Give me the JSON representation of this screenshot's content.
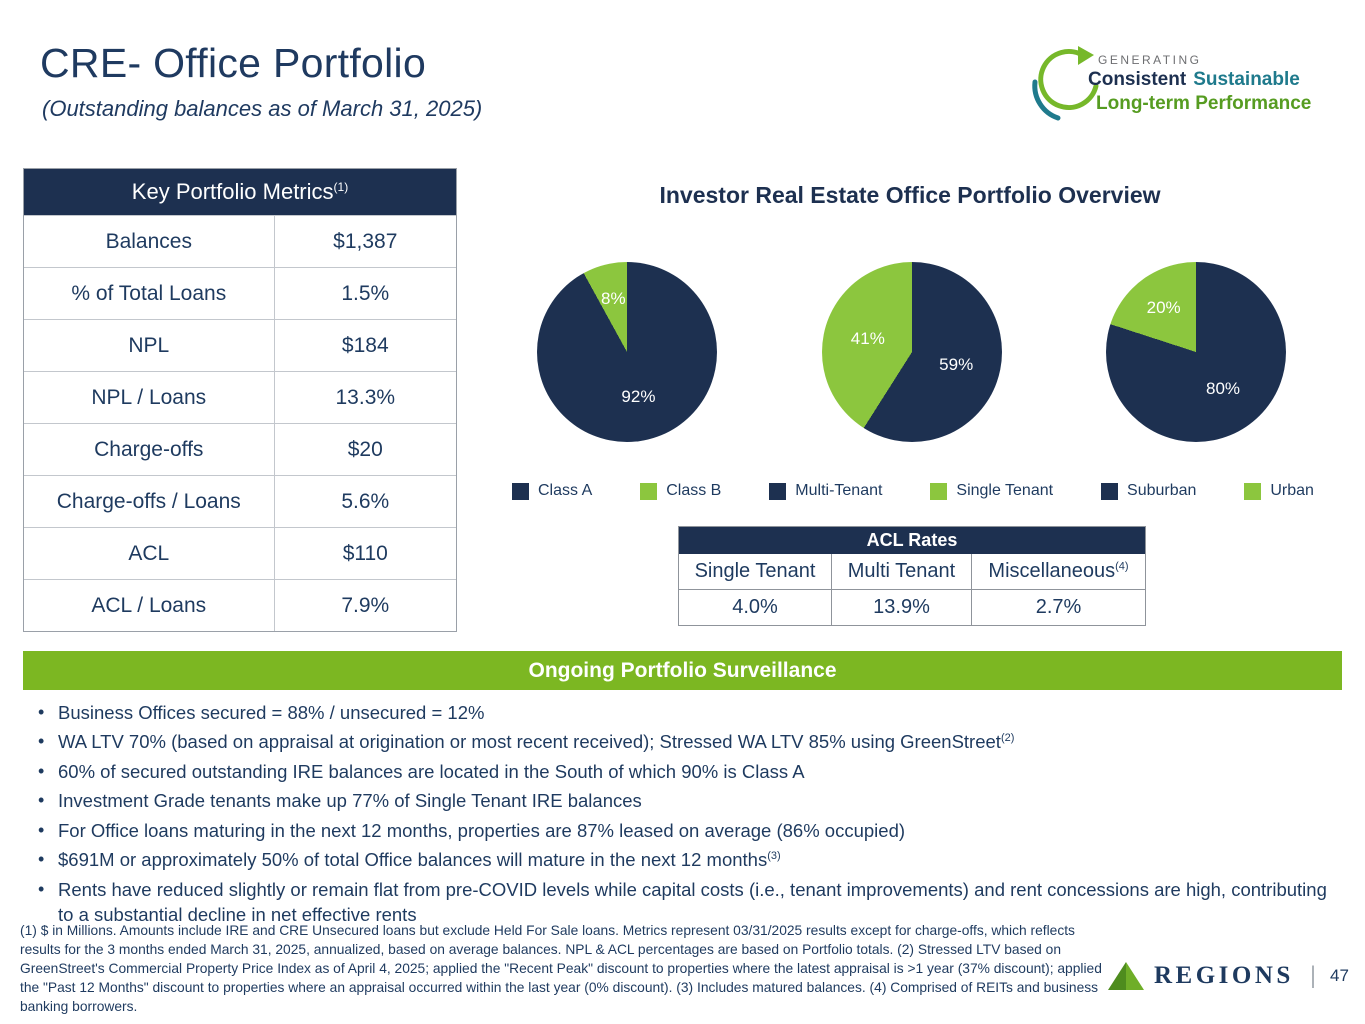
{
  "header": {
    "title": "CRE- Office Portfolio",
    "subtitle": "(Outstanding balances as of March 31, 2025)",
    "logo": {
      "line1": "GENERATING",
      "line2a": "Consistent",
      "line2b": "Sustainable",
      "line3": "Long-term Performance"
    }
  },
  "colors": {
    "navy": "#1d3050",
    "green": "#8cc63e",
    "banner_green": "#7cb722",
    "teal": "#1f7a8c"
  },
  "metrics_table": {
    "title": "Key Portfolio Metrics",
    "title_sup": "(1)",
    "rows": [
      {
        "label": "Balances",
        "value": "$1,387"
      },
      {
        "label": "% of Total Loans",
        "value": "1.5%"
      },
      {
        "label": "NPL",
        "value": "$184"
      },
      {
        "label": "NPL / Loans",
        "value": "13.3%"
      },
      {
        "label": "Charge-offs",
        "value": "$20"
      },
      {
        "label": "Charge-offs / Loans",
        "value": "5.6%"
      },
      {
        "label": "ACL",
        "value": "$110"
      },
      {
        "label": "ACL / Loans",
        "value": "7.9%"
      }
    ]
  },
  "overview": {
    "title": "Investor Real Estate Office Portfolio Overview",
    "legend": [
      {
        "label": "Class A",
        "color": "#1d3050"
      },
      {
        "label": "Class B",
        "color": "#8cc63e"
      },
      {
        "label": "Multi-Tenant",
        "color": "#1d3050"
      },
      {
        "label": "Single Tenant",
        "color": "#8cc63e"
      },
      {
        "label": "Suburban",
        "color": "#1d3050"
      },
      {
        "label": "Urban",
        "color": "#8cc63e"
      }
    ]
  },
  "chart_data": [
    {
      "type": "pie",
      "title": "Class A vs Class B",
      "labels": [
        "Class A",
        "Class B"
      ],
      "values": [
        92,
        8
      ],
      "display": [
        "92%",
        "8%"
      ],
      "colors": [
        "#1d3050",
        "#8cc63e"
      ]
    },
    {
      "type": "pie",
      "title": "Multi-Tenant vs Single Tenant",
      "labels": [
        "Multi-Tenant",
        "Single Tenant"
      ],
      "values": [
        59,
        41
      ],
      "display": [
        "59%",
        "41%"
      ],
      "colors": [
        "#1d3050",
        "#8cc63e"
      ]
    },
    {
      "type": "pie",
      "title": "Suburban vs Urban",
      "labels": [
        "Suburban",
        "Urban"
      ],
      "values": [
        80,
        20
      ],
      "display": [
        "80%",
        "20%"
      ],
      "colors": [
        "#1d3050",
        "#8cc63e"
      ]
    }
  ],
  "acl_table": {
    "title": "ACL Rates",
    "columns": [
      {
        "label": "Single Tenant",
        "sup": ""
      },
      {
        "label": "Multi Tenant",
        "sup": ""
      },
      {
        "label": "Miscellaneous",
        "sup": "(4)"
      }
    ],
    "values": [
      "4.0%",
      "13.9%",
      "2.7%"
    ]
  },
  "surveillance": {
    "banner": "Ongoing Portfolio Surveillance",
    "bullets": [
      {
        "text": "Business Offices secured = 88% / unsecured = 12%",
        "sup": ""
      },
      {
        "text": "WA LTV 70% (based on appraisal at origination or most recent received); Stressed WA LTV 85% using GreenStreet",
        "sup": "(2)"
      },
      {
        "text": "60% of secured outstanding IRE balances are located in the South of which 90% is Class A",
        "sup": ""
      },
      {
        "text": "Investment Grade tenants make up 77% of Single Tenant IRE balances",
        "sup": ""
      },
      {
        "text": "For Office loans maturing in the next 12 months, properties are 87% leased on average (86% occupied)",
        "sup": ""
      },
      {
        "text": "$691M or approximately 50% of total Office balances will mature in the next 12 months",
        "sup": "(3)"
      },
      {
        "text": "Rents have reduced slightly or remain flat from pre-COVID levels while capital costs (i.e., tenant improvements) and rent concessions are high, contributing to a substantial decline in net effective rents",
        "sup": ""
      }
    ]
  },
  "footnote": "(1) $ in Millions. Amounts include IRE and CRE Unsecured loans but exclude Held For Sale loans. Metrics represent 03/31/2025 results except for charge-offs, which reflects results for the 3 months ended March 31, 2025, annualized,  based on average balances.  NPL & ACL percentages are based on Portfolio totals.  (2) Stressed LTV based on GreenStreet's Commercial Property Price Index as of April 4, 2025; applied the \"Recent Peak\" discount to properties where the latest appraisal is >1 year (37% discount); applied the \"Past 12 Months\" discount to properties where an appraisal occurred within the last year (0% discount). (3) Includes matured balances. (4) Comprised of REITs and business banking borrowers.",
  "footer": {
    "brand": "REGIONS",
    "page": "47"
  }
}
